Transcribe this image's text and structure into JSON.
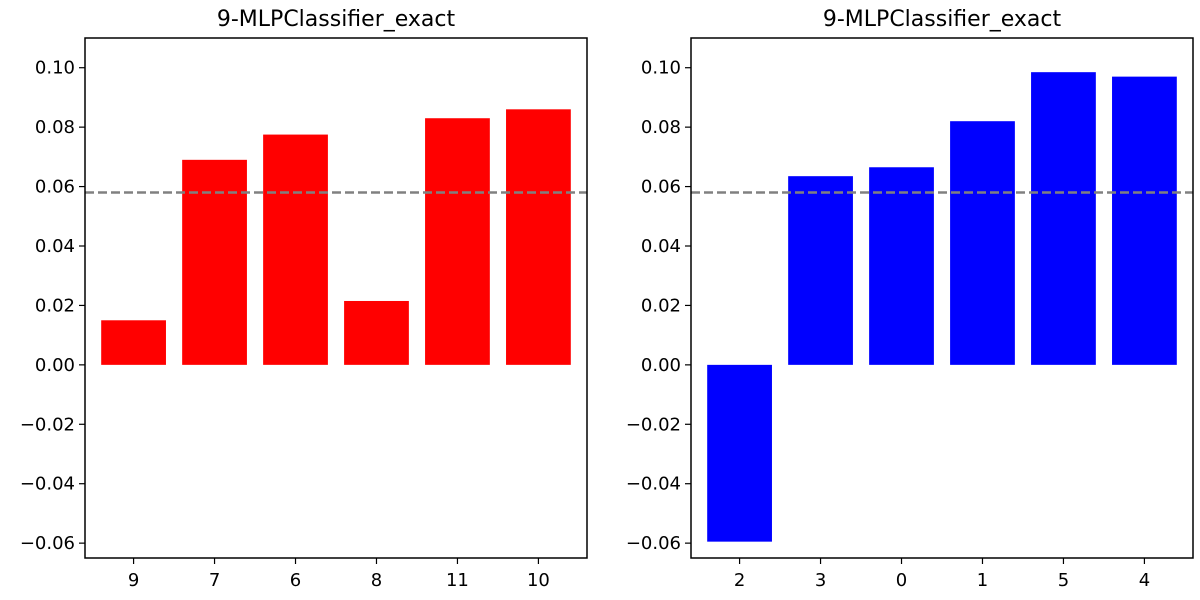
{
  "chart_data": [
    {
      "type": "bar",
      "title": "9-MLPClassifier_exact",
      "categories": [
        "9",
        "7",
        "6",
        "8",
        "11",
        "10"
      ],
      "values": [
        0.015,
        0.069,
        0.0775,
        0.0215,
        0.083,
        0.086
      ],
      "bar_color": "#ff0000",
      "reference_line": {
        "y": 0.058,
        "style": "dashed",
        "color": "#808080"
      },
      "ylim": [
        -0.065,
        0.11
      ],
      "yticks": [
        -0.06,
        -0.04,
        -0.02,
        0.0,
        0.02,
        0.04,
        0.06,
        0.08,
        0.1
      ],
      "ytick_labels": [
        "−0.06",
        "−0.04",
        "−0.02",
        "0.00",
        "0.02",
        "0.04",
        "0.06",
        "0.08",
        "0.10"
      ],
      "grid": false
    },
    {
      "type": "bar",
      "title": "9-MLPClassifier_exact",
      "categories": [
        "2",
        "3",
        "0",
        "1",
        "5",
        "4"
      ],
      "values": [
        -0.0595,
        0.0635,
        0.0665,
        0.082,
        0.0985,
        0.097
      ],
      "bar_color": "#0000ff",
      "reference_line": {
        "y": 0.058,
        "style": "dashed",
        "color": "#808080"
      },
      "ylim": [
        -0.065,
        0.11
      ],
      "yticks": [
        -0.06,
        -0.04,
        -0.02,
        0.0,
        0.02,
        0.04,
        0.06,
        0.08,
        0.1
      ],
      "ytick_labels": [
        "−0.06",
        "−0.04",
        "−0.02",
        "0.00",
        "0.02",
        "0.04",
        "0.06",
        "0.08",
        "0.10"
      ],
      "grid": false
    }
  ]
}
